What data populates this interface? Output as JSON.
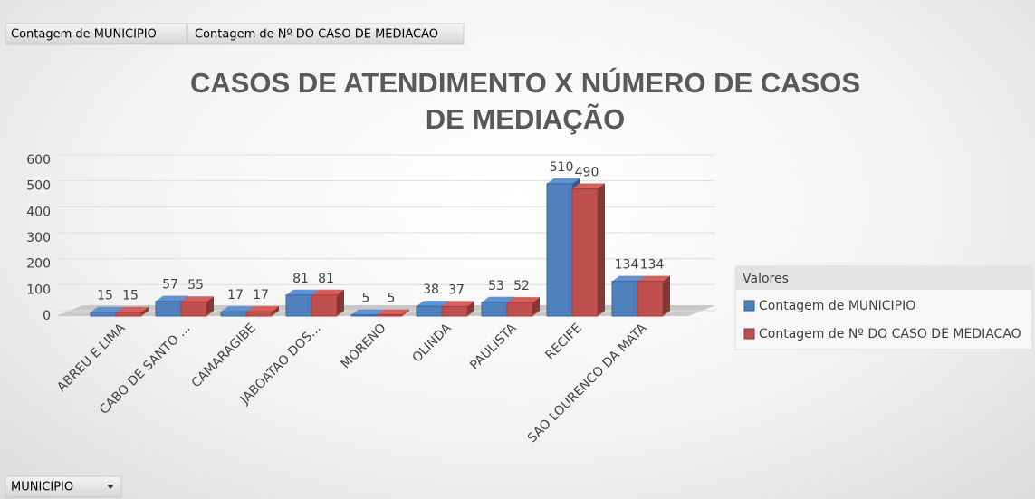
{
  "chart_data": {
    "type": "bar",
    "title": "CASOS DE ATENDIMENTO X NÚMERO DE CASOS DE MEDIAÇÃO",
    "categories": [
      "ABREU E LIMA",
      "CABO DE SANTO ...",
      "CAMARAGIBE",
      "JABOATAO DOS...",
      "MORENO",
      "OLINDA",
      "PAULISTA",
      "RECIFE",
      "SAO LOURENCO DA MATA"
    ],
    "series": [
      {
        "name": "Contagem de MUNICIPIO",
        "color": "#4f81bd",
        "values": [
          15,
          57,
          17,
          81,
          5,
          38,
          53,
          510,
          134
        ]
      },
      {
        "name": "Contagem de Nº DO CASO DE MEDIACAO",
        "color": "#c0504d",
        "values": [
          15,
          55,
          17,
          81,
          5,
          37,
          52,
          490,
          134
        ]
      }
    ],
    "ylim": [
      0,
      600
    ],
    "yticks": [
      0,
      100,
      200,
      300,
      400,
      500,
      600
    ],
    "grid": true,
    "legend_title": "Valores",
    "legend_position": "right",
    "axis_field_button": "MUNICIPIO"
  }
}
